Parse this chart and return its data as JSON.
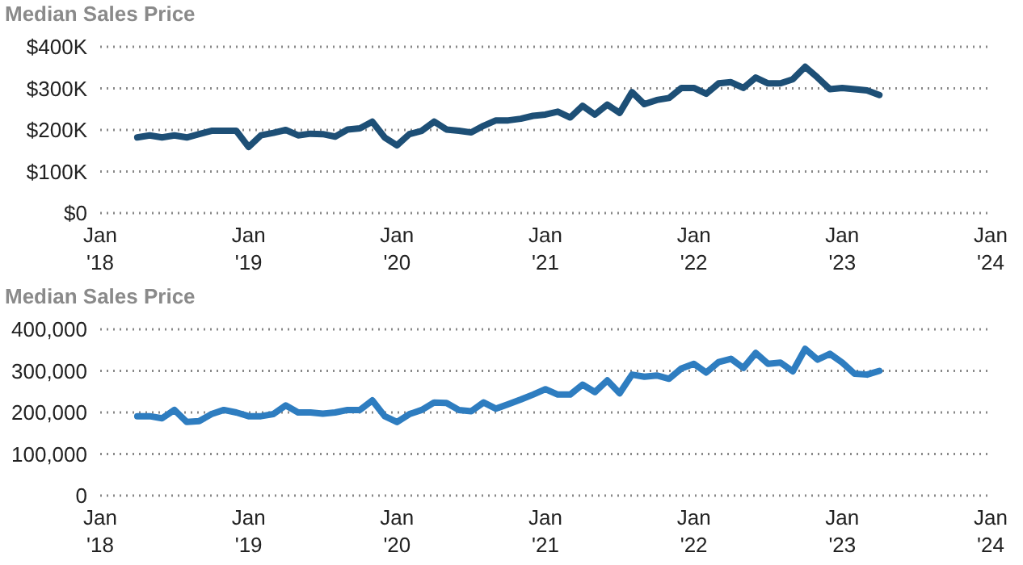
{
  "chart_data": [
    {
      "type": "line",
      "title": "Median Sales Price",
      "x": [
        "2018-04",
        "2018-05",
        "2018-06",
        "2018-07",
        "2018-08",
        "2018-09",
        "2018-10",
        "2018-11",
        "2018-12",
        "2019-01",
        "2019-02",
        "2019-03",
        "2019-04",
        "2019-05",
        "2019-06",
        "2019-07",
        "2019-08",
        "2019-09",
        "2019-10",
        "2019-11",
        "2019-12",
        "2020-01",
        "2020-02",
        "2020-03",
        "2020-04",
        "2020-05",
        "2020-06",
        "2020-07",
        "2020-08",
        "2020-09",
        "2020-10",
        "2020-11",
        "2020-12",
        "2021-01",
        "2021-02",
        "2021-03",
        "2021-04",
        "2021-05",
        "2021-06",
        "2021-07",
        "2021-08",
        "2021-09",
        "2021-10",
        "2021-11",
        "2021-12",
        "2022-01",
        "2022-02",
        "2022-03",
        "2022-04",
        "2022-05",
        "2022-06",
        "2022-07",
        "2022-08",
        "2022-09",
        "2022-10",
        "2022-11",
        "2022-12",
        "2023-01",
        "2023-02",
        "2023-03",
        "2023-04"
      ],
      "series": [
        {
          "color": "#1d4f76",
          "values": [
            182000,
            187000,
            182000,
            187000,
            182000,
            190000,
            198000,
            198000,
            198000,
            159000,
            187000,
            193000,
            200000,
            187000,
            191000,
            190000,
            184000,
            201000,
            204000,
            220000,
            182000,
            163000,
            190000,
            198000,
            220000,
            201000,
            198000,
            194000,
            210000,
            223000,
            223000,
            227000,
            234000,
            237000,
            244000,
            230000,
            258000,
            237000,
            261000,
            241000,
            291000,
            262000,
            272000,
            277000,
            301000,
            301000,
            287000,
            312000,
            315000,
            301000,
            326000,
            312000,
            312000,
            322000,
            352000,
            326000,
            298000,
            301000,
            298000,
            295000,
            284000
          ]
        }
      ],
      "xlim": [
        "2018-01",
        "2024-01"
      ],
      "xticks": [
        {
          "value": "2018-01",
          "label": "Jan '18"
        },
        {
          "value": "2019-01",
          "label": "Jan '19"
        },
        {
          "value": "2020-01",
          "label": "Jan '20"
        },
        {
          "value": "2021-01",
          "label": "Jan '21"
        },
        {
          "value": "2022-01",
          "label": "Jan '22"
        },
        {
          "value": "2023-01",
          "label": "Jan '23"
        },
        {
          "value": "2024-01",
          "label": "Jan '24"
        }
      ],
      "ylim": [
        0,
        400000
      ],
      "yticks": [
        {
          "value": 0,
          "label": "$0"
        },
        {
          "value": 100000,
          "label": "$100K"
        },
        {
          "value": 200000,
          "label": "$200K"
        },
        {
          "value": 300000,
          "label": "$300K"
        },
        {
          "value": 400000,
          "label": "$400K"
        }
      ],
      "grid": "y",
      "legend": false,
      "marker": "none",
      "line_style": "solid"
    },
    {
      "type": "line",
      "title": "Median Sales Price",
      "x": [
        "2018-04",
        "2018-05",
        "2018-06",
        "2018-07",
        "2018-08",
        "2018-09",
        "2018-10",
        "2018-11",
        "2018-12",
        "2019-01",
        "2019-02",
        "2019-03",
        "2019-04",
        "2019-05",
        "2019-06",
        "2019-07",
        "2019-08",
        "2019-09",
        "2019-10",
        "2019-11",
        "2019-12",
        "2020-01",
        "2020-02",
        "2020-03",
        "2020-04",
        "2020-05",
        "2020-06",
        "2020-07",
        "2020-08",
        "2020-09",
        "2020-10",
        "2020-11",
        "2020-12",
        "2021-01",
        "2021-02",
        "2021-03",
        "2021-04",
        "2021-05",
        "2021-06",
        "2021-07",
        "2021-08",
        "2021-09",
        "2021-10",
        "2021-11",
        "2021-12",
        "2022-01",
        "2022-02",
        "2022-03",
        "2022-04",
        "2022-05",
        "2022-06",
        "2022-07",
        "2022-08",
        "2022-09",
        "2022-10",
        "2022-11",
        "2022-12",
        "2023-01",
        "2023-02",
        "2023-03",
        "2023-04"
      ],
      "series": [
        {
          "color": "#2e7dc0",
          "values": [
            191000,
            191000,
            186000,
            206000,
            177000,
            179000,
            196000,
            206000,
            200000,
            191000,
            191000,
            196000,
            217000,
            200000,
            200000,
            197000,
            200000,
            206000,
            206000,
            229000,
            191000,
            177000,
            196000,
            206000,
            224000,
            223000,
            206000,
            203000,
            224000,
            209000,
            220000,
            231000,
            243000,
            256000,
            243000,
            243000,
            267000,
            249000,
            277000,
            246000,
            291000,
            286000,
            289000,
            281000,
            306000,
            317000,
            296000,
            321000,
            329000,
            307000,
            343000,
            317000,
            320000,
            299000,
            353000,
            327000,
            341000,
            320000,
            293000,
            291000,
            300000
          ]
        }
      ],
      "xlim": [
        "2018-01",
        "2024-01"
      ],
      "xticks": [
        {
          "value": "2018-01",
          "label": "Jan '18"
        },
        {
          "value": "2019-01",
          "label": "Jan '19"
        },
        {
          "value": "2020-01",
          "label": "Jan '20"
        },
        {
          "value": "2021-01",
          "label": "Jan '21"
        },
        {
          "value": "2022-01",
          "label": "Jan '22"
        },
        {
          "value": "2023-01",
          "label": "Jan '23"
        },
        {
          "value": "2024-01",
          "label": "Jan '24"
        }
      ],
      "ylim": [
        0,
        400000
      ],
      "yticks": [
        {
          "value": 0,
          "label": "0"
        },
        {
          "value": 100000,
          "label": "100,000"
        },
        {
          "value": 200000,
          "label": "200,000"
        },
        {
          "value": 300000,
          "label": "300,000"
        },
        {
          "value": 400000,
          "label": "400,000"
        }
      ],
      "grid": "y",
      "legend": false,
      "marker": "none",
      "line_style": "solid"
    }
  ]
}
